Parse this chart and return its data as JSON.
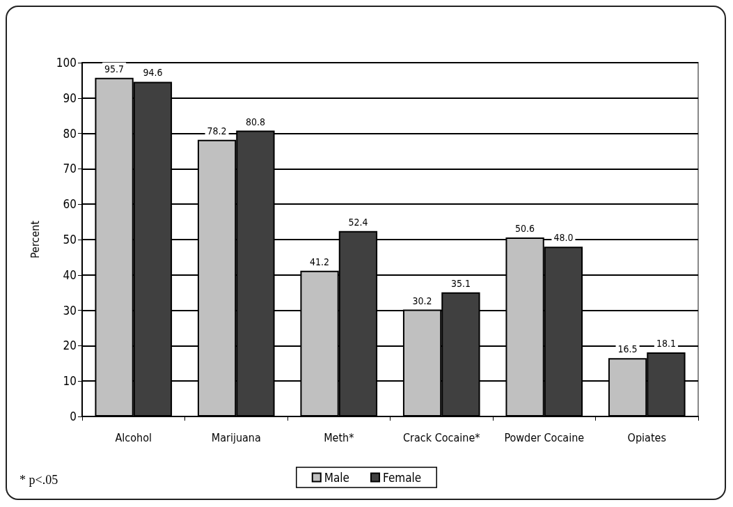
{
  "chart_data": {
    "type": "bar",
    "ylabel": "Percent",
    "categories": [
      "Alcohol",
      "Marijuana",
      "Meth*",
      "Crack Cocaine*",
      "Powder Cocaine",
      "Opiates"
    ],
    "series": [
      {
        "name": "Male",
        "color": "#c0c0c0",
        "values": [
          95.7,
          78.2,
          41.2,
          30.2,
          50.6,
          16.5
        ],
        "value_labels": [
          "95.7",
          "78.2",
          "41.2",
          "30.2",
          "50.6",
          "16.5"
        ]
      },
      {
        "name": "Female",
        "color": "#404040",
        "values": [
          94.6,
          80.8,
          52.4,
          35.1,
          48.0,
          18.1
        ],
        "value_labels": [
          "94.6",
          "80.8",
          "52.4",
          "35.1",
          "48.0",
          "18.1"
        ]
      }
    ],
    "ylim": [
      0,
      100
    ],
    "yticks": [
      0,
      10,
      20,
      30,
      40,
      50,
      60,
      70,
      80,
      90,
      100
    ],
    "grid": "y",
    "legend": "bottom",
    "annotations": [
      "* p<.05"
    ]
  }
}
